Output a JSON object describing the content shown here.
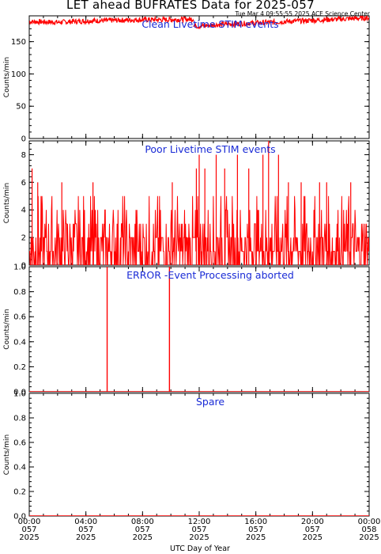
{
  "title": "LET ahead BUFRATES Data for 2025-057",
  "stamp": "Tue Mar  4 09:55:55 2025 ACE Science Center",
  "xlabel": "UTC Day of Year",
  "line_color": "#ff0000",
  "title_color": "#1a2bd6",
  "chart_data": [
    {
      "type": "line",
      "title": "Clean Livetime STIM events",
      "ylabel": "Counts/min",
      "ylim": [
        0,
        190
      ],
      "yticks": [
        0,
        50,
        100,
        150
      ],
      "xlim": [
        0,
        24
      ],
      "segments": [
        {
          "x": [
            0.0,
            2.0,
            4.0,
            6.0,
            8.0,
            10.0,
            11.6
          ],
          "y": [
            181,
            180,
            182,
            183,
            184,
            184,
            185
          ]
        },
        {
          "x": [
            11.6,
            12.0,
            13.0,
            14.0,
            16.0,
            18.0,
            20.0,
            22.0,
            24.0
          ],
          "y": [
            175,
            174,
            176,
            177,
            179,
            181,
            183,
            185,
            187
          ]
        }
      ],
      "noise": 4
    },
    {
      "type": "line",
      "title": "Poor Livetime STIM events",
      "ylabel": "Counts/min",
      "ylim": [
        0,
        9
      ],
      "yticks": [
        0,
        2,
        4,
        6,
        8
      ],
      "xlim": [
        0,
        24
      ],
      "spikes": [
        {
          "x": 0.2,
          "y": 7
        },
        {
          "x": 0.6,
          "y": 6
        },
        {
          "x": 2.3,
          "y": 6
        },
        {
          "x": 4.5,
          "y": 6
        },
        {
          "x": 10.1,
          "y": 6
        },
        {
          "x": 11.8,
          "y": 7
        },
        {
          "x": 12.0,
          "y": 8
        },
        {
          "x": 12.4,
          "y": 7
        },
        {
          "x": 13.2,
          "y": 8
        },
        {
          "x": 13.8,
          "y": 7
        },
        {
          "x": 14.7,
          "y": 8
        },
        {
          "x": 15.5,
          "y": 7
        },
        {
          "x": 16.5,
          "y": 8
        },
        {
          "x": 16.9,
          "y": 9
        },
        {
          "x": 17.6,
          "y": 8
        },
        {
          "x": 18.3,
          "y": 6
        },
        {
          "x": 19.2,
          "y": 6
        },
        {
          "x": 20.5,
          "y": 6
        },
        {
          "x": 21.0,
          "y": 6
        },
        {
          "x": 22.7,
          "y": 6
        }
      ]
    },
    {
      "type": "line",
      "title": "ERROR -Event Processing aborted",
      "ylabel": "Counts/min",
      "ylim": [
        0,
        1.0
      ],
      "yticks": [
        0.0,
        0.2,
        0.4,
        0.6,
        0.8,
        1.0
      ],
      "xlim": [
        0,
        24
      ],
      "spikes": [
        {
          "x": 5.5,
          "y": 1.0
        },
        {
          "x": 9.9,
          "y": 1.0
        }
      ]
    },
    {
      "type": "line",
      "title": "Spare",
      "ylabel": "Counts/min",
      "ylim": [
        0,
        1.0
      ],
      "yticks": [
        0.0,
        0.2,
        0.4,
        0.6,
        0.8,
        1.0
      ],
      "xlim": [
        0,
        24
      ],
      "values_constant": 0
    }
  ],
  "x_ticks": [
    {
      "hour": 0,
      "time": "00:00",
      "doy": "057",
      "year": "2025"
    },
    {
      "hour": 4,
      "time": "04:00",
      "doy": "057",
      "year": "2025"
    },
    {
      "hour": 8,
      "time": "08:00",
      "doy": "057",
      "year": "2025"
    },
    {
      "hour": 12,
      "time": "12:00",
      "doy": "057",
      "year": "2025"
    },
    {
      "hour": 16,
      "time": "16:00",
      "doy": "057",
      "year": "2025"
    },
    {
      "hour": 20,
      "time": "20:00",
      "doy": "057",
      "year": "2025"
    },
    {
      "hour": 24,
      "time": "00:00",
      "doy": "058",
      "year": "2025"
    }
  ]
}
